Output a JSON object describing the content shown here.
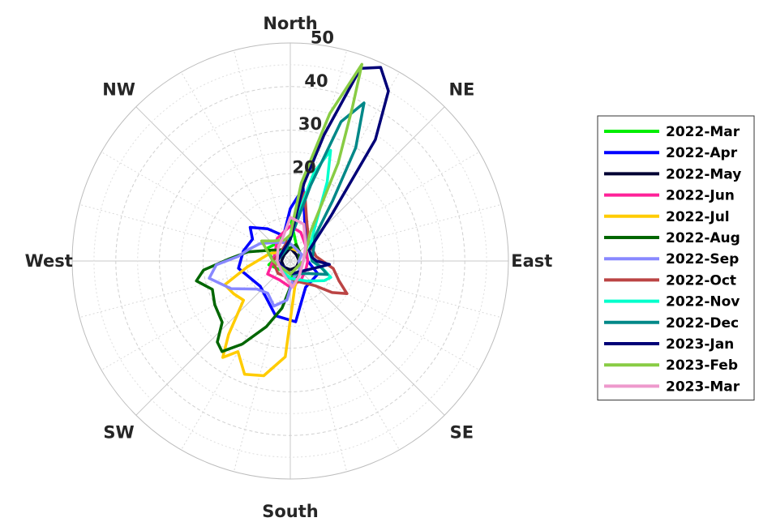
{
  "chart_data": {
    "type": "line",
    "coordinate_system": "polar",
    "grid": true,
    "legend_position": "right",
    "direction_labels": [
      "North",
      "NE",
      "East",
      "SE",
      "South",
      "SW",
      "West",
      "NW"
    ],
    "r_ticks": [
      10,
      20,
      30,
      40,
      50
    ],
    "r_tick_labels": [
      "",
      "20",
      "30",
      "40",
      "50"
    ],
    "r_lim": [
      0,
      50
    ],
    "theta_unit": "degrees clockwise from North",
    "series": [
      {
        "name": "2022-Mar",
        "color": "#00ee00",
        "points": [
          [
            0,
            10
          ],
          [
            20,
            4
          ],
          [
            45,
            3
          ],
          [
            90,
            2
          ],
          [
            135,
            3
          ],
          [
            180,
            4
          ],
          [
            225,
            3
          ],
          [
            260,
            5
          ],
          [
            270,
            4
          ],
          [
            300,
            6
          ],
          [
            330,
            5
          ],
          [
            350,
            7
          ]
        ]
      },
      {
        "name": "2022-Apr",
        "color": "#0000ff",
        "points": [
          [
            0,
            12
          ],
          [
            10,
            17
          ],
          [
            25,
            8
          ],
          [
            45,
            5
          ],
          [
            70,
            4
          ],
          [
            90,
            4
          ],
          [
            115,
            7
          ],
          [
            150,
            7
          ],
          [
            175,
            14
          ],
          [
            195,
            13
          ],
          [
            230,
            9
          ],
          [
            262,
            12
          ],
          [
            282,
            11
          ],
          [
            300,
            10
          ],
          [
            310,
            12
          ],
          [
            325,
            9
          ],
          [
            345,
            6
          ]
        ]
      },
      {
        "name": "2022-May",
        "color": "#000033",
        "points": [
          [
            0,
            3
          ],
          [
            45,
            2
          ],
          [
            90,
            2
          ],
          [
            135,
            2
          ],
          [
            180,
            2
          ],
          [
            225,
            2
          ],
          [
            270,
            2
          ],
          [
            315,
            2
          ]
        ]
      },
      {
        "name": "2022-Jun",
        "color": "#ff2299",
        "points": [
          [
            0,
            8
          ],
          [
            20,
            7
          ],
          [
            45,
            5
          ],
          [
            90,
            4
          ],
          [
            115,
            4
          ],
          [
            150,
            5
          ],
          [
            180,
            6
          ],
          [
            210,
            5
          ],
          [
            240,
            6
          ],
          [
            270,
            4
          ],
          [
            300,
            4
          ],
          [
            330,
            6
          ],
          [
            350,
            7
          ]
        ]
      },
      {
        "name": "2022-Jul",
        "color": "#ffcc00",
        "points": [
          [
            0,
            3
          ],
          [
            45,
            3
          ],
          [
            90,
            2
          ],
          [
            135,
            3
          ],
          [
            170,
            6
          ],
          [
            183,
            22
          ],
          [
            193,
            27
          ],
          [
            202,
            28
          ],
          [
            210,
            24
          ],
          [
            215,
            27
          ],
          [
            220,
            22
          ],
          [
            230,
            14
          ],
          [
            240,
            15
          ],
          [
            250,
            16
          ],
          [
            262,
            10
          ],
          [
            290,
            5
          ],
          [
            315,
            3
          ],
          [
            345,
            3
          ]
        ]
      },
      {
        "name": "2022-Aug",
        "color": "#006600",
        "points": [
          [
            0,
            3
          ],
          [
            20,
            4
          ],
          [
            45,
            3
          ],
          [
            90,
            2
          ],
          [
            135,
            3
          ],
          [
            170,
            5
          ],
          [
            180,
            6
          ],
          [
            190,
            11
          ],
          [
            200,
            16
          ],
          [
            210,
            22
          ],
          [
            217,
            26
          ],
          [
            222,
            25
          ],
          [
            228,
            21
          ],
          [
            240,
            20
          ],
          [
            250,
            19
          ],
          [
            258,
            22
          ],
          [
            264,
            20
          ],
          [
            272,
            14
          ],
          [
            282,
            10
          ],
          [
            300,
            5
          ],
          [
            330,
            3
          ],
          [
            350,
            3
          ]
        ]
      },
      {
        "name": "2022-Sep",
        "color": "#8888ff",
        "points": [
          [
            0,
            4
          ],
          [
            30,
            3
          ],
          [
            60,
            3
          ],
          [
            90,
            2
          ],
          [
            135,
            3
          ],
          [
            170,
            4
          ],
          [
            185,
            9
          ],
          [
            200,
            11
          ],
          [
            215,
            9
          ],
          [
            230,
            10
          ],
          [
            245,
            15
          ],
          [
            258,
            19
          ],
          [
            267,
            17
          ],
          [
            275,
            12
          ],
          [
            285,
            10
          ],
          [
            300,
            8
          ],
          [
            330,
            5
          ]
        ]
      },
      {
        "name": "2022-Oct",
        "color": "#bb4444",
        "points": [
          [
            0,
            6
          ],
          [
            12,
            16
          ],
          [
            22,
            10
          ],
          [
            45,
            6
          ],
          [
            80,
            6
          ],
          [
            100,
            10
          ],
          [
            112,
            12
          ],
          [
            120,
            15
          ],
          [
            127,
            12
          ],
          [
            135,
            8
          ],
          [
            160,
            5
          ],
          [
            180,
            4
          ],
          [
            225,
            4
          ],
          [
            270,
            4
          ],
          [
            315,
            3
          ],
          [
            345,
            4
          ]
        ]
      },
      {
        "name": "2022-Nov",
        "color": "#00ffcc",
        "points": [
          [
            0,
            6
          ],
          [
            15,
            21
          ],
          [
            20,
            27
          ],
          [
            25,
            20
          ],
          [
            35,
            10
          ],
          [
            60,
            5
          ],
          [
            90,
            5
          ],
          [
            105,
            8
          ],
          [
            112,
            10
          ],
          [
            120,
            9
          ],
          [
            140,
            6
          ],
          [
            180,
            4
          ],
          [
            225,
            3
          ],
          [
            270,
            3
          ],
          [
            315,
            3
          ],
          [
            345,
            3
          ]
        ]
      },
      {
        "name": "2022-Dec",
        "color": "#008888",
        "points": [
          [
            0,
            5
          ],
          [
            15,
            18
          ],
          [
            20,
            34
          ],
          [
            25,
            40
          ],
          [
            30,
            30
          ],
          [
            35,
            17
          ],
          [
            45,
            8
          ],
          [
            90,
            5
          ],
          [
            100,
            7
          ],
          [
            110,
            9
          ],
          [
            125,
            5
          ],
          [
            180,
            3
          ],
          [
            270,
            3
          ],
          [
            345,
            3
          ]
        ]
      },
      {
        "name": "2023-Jan",
        "color": "#000077",
        "points": [
          [
            0,
            5
          ],
          [
            10,
            18
          ],
          [
            15,
            30
          ],
          [
            20,
            47
          ],
          [
            25,
            49
          ],
          [
            30,
            45
          ],
          [
            35,
            34
          ],
          [
            42,
            14
          ],
          [
            60,
            5
          ],
          [
            80,
            5
          ],
          [
            90,
            6
          ],
          [
            95,
            9
          ],
          [
            105,
            6
          ],
          [
            180,
            3
          ],
          [
            270,
            3
          ],
          [
            330,
            3
          ]
        ]
      },
      {
        "name": "2023-Feb",
        "color": "#88cc44",
        "points": [
          [
            0,
            6
          ],
          [
            8,
            18
          ],
          [
            15,
            35
          ],
          [
            20,
            48
          ],
          [
            22,
            38
          ],
          [
            26,
            25
          ],
          [
            35,
            8
          ],
          [
            90,
            3
          ],
          [
            180,
            3
          ],
          [
            270,
            4
          ],
          [
            305,
            8
          ],
          [
            320,
            6
          ],
          [
            345,
            5
          ]
        ]
      },
      {
        "name": "2023-Mar",
        "color": "#ee99cc",
        "points": [
          [
            0,
            10
          ],
          [
            20,
            9
          ],
          [
            45,
            5
          ],
          [
            90,
            3
          ],
          [
            120,
            3
          ],
          [
            150,
            4
          ],
          [
            175,
            6
          ],
          [
            195,
            4
          ],
          [
            225,
            3
          ],
          [
            270,
            3
          ],
          [
            315,
            4
          ],
          [
            345,
            6
          ]
        ]
      }
    ]
  }
}
